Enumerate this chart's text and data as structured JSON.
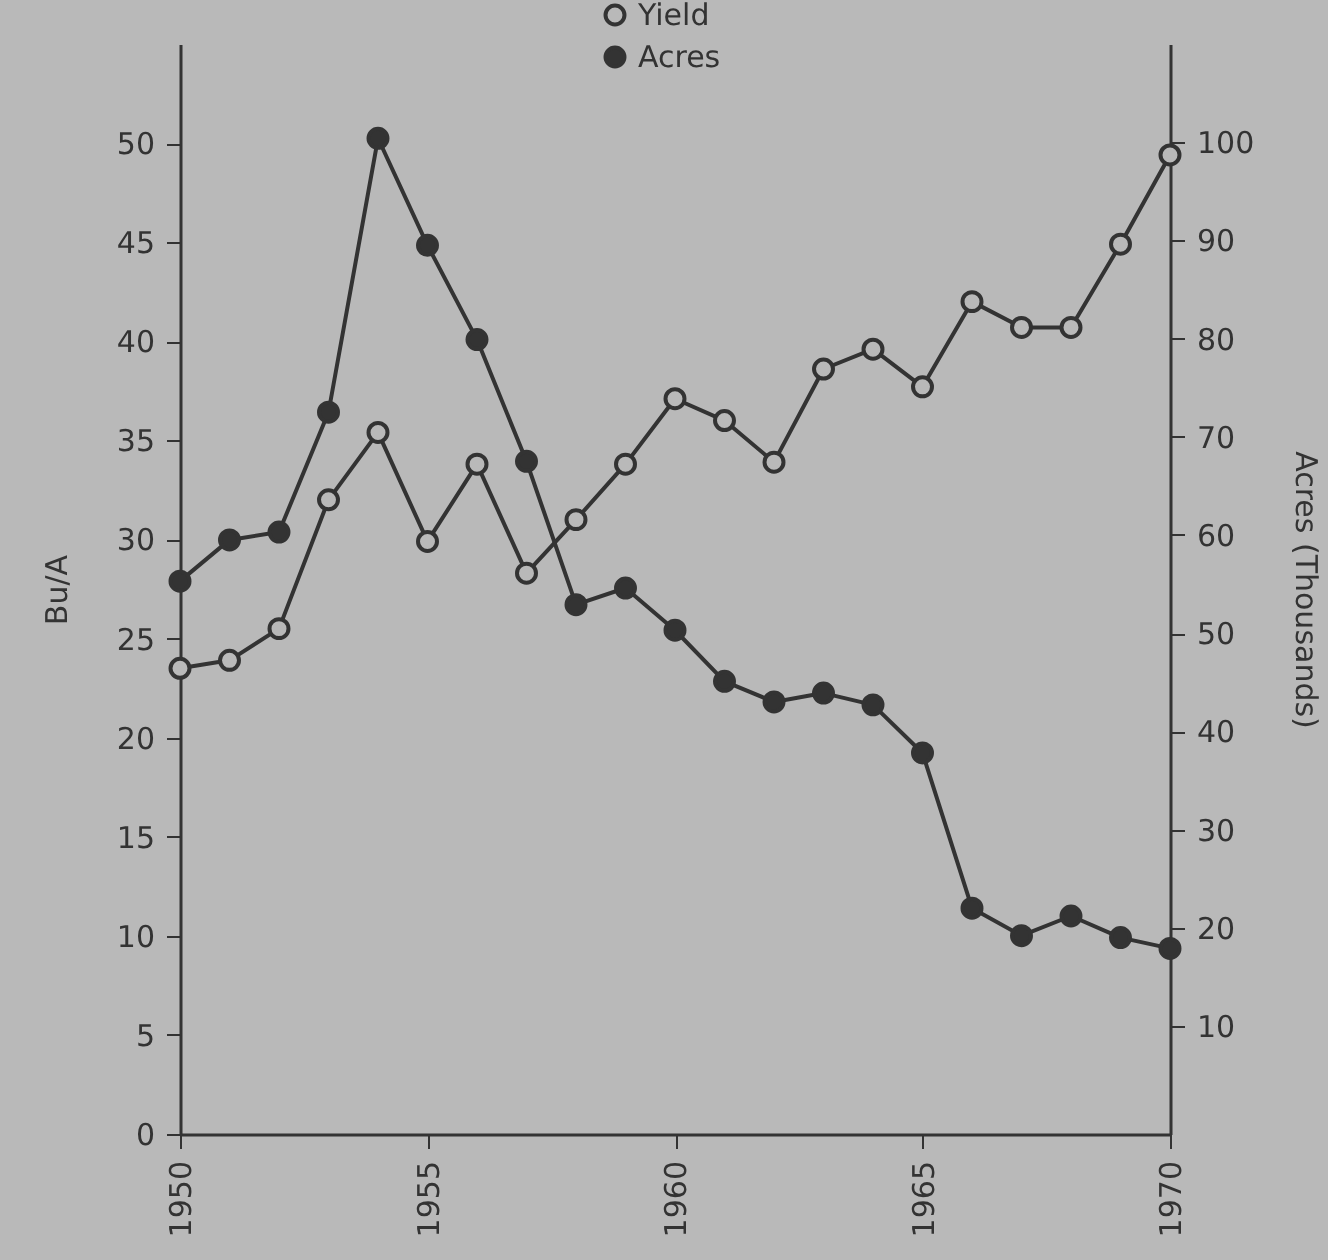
{
  "chart_data": {
    "type": "line",
    "ylabel": "Bu/A",
    "y2label": "Acres (Thousands)",
    "x": [
      1950,
      1951,
      1952,
      1953,
      1954,
      1955,
      1956,
      1957,
      1958,
      1959,
      1960,
      1961,
      1962,
      1963,
      1964,
      1965,
      1966,
      1967,
      1968,
      1969,
      1970
    ],
    "series": [
      {
        "name": "Yield",
        "color": "#333333",
        "values": [
          23.5,
          23.9,
          25.5,
          32,
          35.4,
          29.9,
          33.8,
          28.3,
          31,
          33.8,
          37.1,
          36,
          33.9,
          38.6,
          39.6,
          37.7,
          42,
          40.7,
          40.7,
          44.9,
          49.4
        ]
      },
      {
        "name": "Acres",
        "color": "#333333",
        "axis": "y2",
        "values": [
          55.3,
          59.5,
          60.3,
          72.5,
          100.4,
          89.5,
          79.9,
          67.5,
          52.9,
          54.6,
          50.3,
          45.1,
          43,
          43.9,
          42.7,
          37.8,
          22,
          19.2,
          21.2,
          19,
          17.9
        ]
      }
    ],
    "xlim": [
      1950,
      1970
    ],
    "xticks": [
      1950,
      1955,
      1960,
      1965,
      1970
    ],
    "ylim": [
      0,
      55
    ],
    "yticks": [
      0,
      5,
      10,
      15,
      20,
      25,
      30,
      35,
      40,
      45,
      50
    ],
    "y2lim": [
      -1,
      110
    ],
    "y2ticks": [
      10,
      20,
      30,
      40,
      50,
      60,
      70,
      80,
      90,
      100
    ],
    "marker": "circle",
    "legend": "top",
    "grid": false
  }
}
